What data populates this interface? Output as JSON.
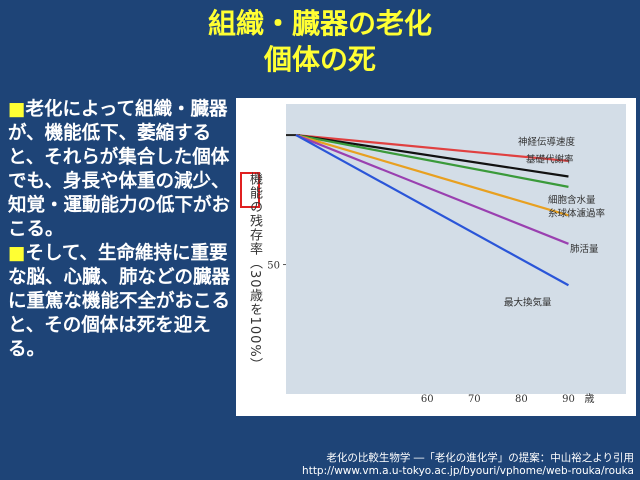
{
  "title": {
    "line1": "組織・臓器の老化",
    "line2": "個体の死"
  },
  "body": {
    "bullet": "■",
    "para1": "老化によって組織・臓器が、機能低下、萎縮すると、それらが集合した個体でも、身長や体重の減少、知覚・運動能力の低下がおこる。",
    "para2": "そして、生命維持に重要な脳、心臓、肺などの臓器に重篤な機能不全がおこると、その個体は死を迎える。"
  },
  "chart_data": {
    "type": "line",
    "ylabel_highlight": "機能",
    "ylabel_rest": "の残存率（30歳を100%）",
    "yticks": [
      50
    ],
    "x": [
      30,
      90
    ],
    "xticks": [
      60,
      70,
      80,
      90
    ],
    "xunit": "歳",
    "xlim": [
      30,
      95
    ],
    "ylim": [
      0,
      112
    ],
    "series": [
      {
        "name": "神経伝導速度",
        "values": [
          100,
          90
        ],
        "color": "#e04040"
      },
      {
        "name": "基礎代謝率",
        "values": [
          100,
          84
        ],
        "color": "#111111"
      },
      {
        "name": "細胞含水量",
        "values": [
          100,
          80
        ],
        "color": "#3a9a3a"
      },
      {
        "name": "糸球体濾過率",
        "values": [
          100,
          69
        ],
        "color": "#e8a020"
      },
      {
        "name": "肺活量",
        "values": [
          100,
          58
        ],
        "color": "#9a40b0"
      },
      {
        "name": "最大換気量",
        "values": [
          100,
          42
        ],
        "color": "#2a55d8"
      }
    ]
  },
  "footer": {
    "line1": "老化の比較生物学 ―「老化の進化学」の提案：中山裕之より引用",
    "line2": "http://www.vm.a.u-tokyo.ac.jp/byouri/vphome/web-rouka/rouka"
  }
}
